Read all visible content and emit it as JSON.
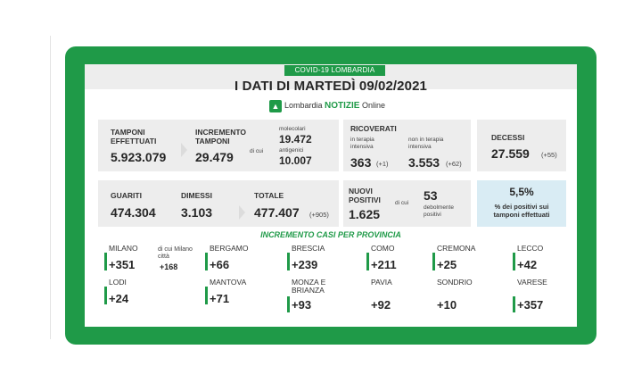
{
  "header": {
    "badge": "COVID-19 LOMBARDIA",
    "title": "I DATI DI MARTEDÌ 09/02/2021",
    "brand_logo": "▲",
    "brand_prefix": "Lombardia ",
    "brand_strong": "NOTIZIE",
    "brand_suffix": " Online"
  },
  "tamponi": {
    "label": "TAMPONI EFFETTUATI",
    "value": "5.923.079"
  },
  "incremento": {
    "label": "INCREMENTO TAMPONI",
    "value": "29.479",
    "di_cui": "di cui",
    "molecolari_label": "molecolari",
    "molecolari_value": "19.472",
    "antigenici_label": "antigenici",
    "antigenici_value": "10.007"
  },
  "ricoverati": {
    "label": "RICOVERATI",
    "ti_label": "in terapia intensiva",
    "ti_value": "363",
    "ti_delta": "(+1)",
    "non_ti_label": "non in terapia intensiva",
    "non_ti_value": "3.553",
    "non_ti_delta": "(+62)"
  },
  "decessi": {
    "label": "DECESSI",
    "value": "27.559",
    "delta": "(+55)"
  },
  "guariti": {
    "label": "GUARITI",
    "value": "474.304"
  },
  "dimessi": {
    "label": "DIMESSI",
    "value": "3.103"
  },
  "totale": {
    "label": "TOTALE",
    "value": "477.407",
    "delta": "(+905)"
  },
  "positivi": {
    "label": "NUOVI POSITIVI",
    "value": "1.625",
    "di_cui": "di cui",
    "deb_value": "53",
    "deb_label": "debolmente positivi"
  },
  "percentuale": {
    "value": "5,5%",
    "label": "% dei positivi sui tamponi effettuati"
  },
  "province_title": "INCREMENTO CASI PER PROVINCIA",
  "milano_extra": {
    "label": "di cui Milano città",
    "value": "+168"
  },
  "provinces": [
    {
      "name": "MILANO",
      "value": "+351"
    },
    {
      "name": "BERGAMO",
      "value": "+66"
    },
    {
      "name": "BRESCIA",
      "value": "+239"
    },
    {
      "name": "COMO",
      "value": "+211"
    },
    {
      "name": "CREMONA",
      "value": "+25"
    },
    {
      "name": "LECCO",
      "value": "+42"
    },
    {
      "name": "LODI",
      "value": "+24"
    },
    {
      "name": "MANTOVA",
      "value": "+71"
    },
    {
      "name": "MONZA E BRIANZA",
      "value": "+93"
    },
    {
      "name": "PAVIA",
      "value": "+92"
    },
    {
      "name": "SONDRIO",
      "value": "+10"
    },
    {
      "name": "VARESE",
      "value": "+357"
    }
  ]
}
